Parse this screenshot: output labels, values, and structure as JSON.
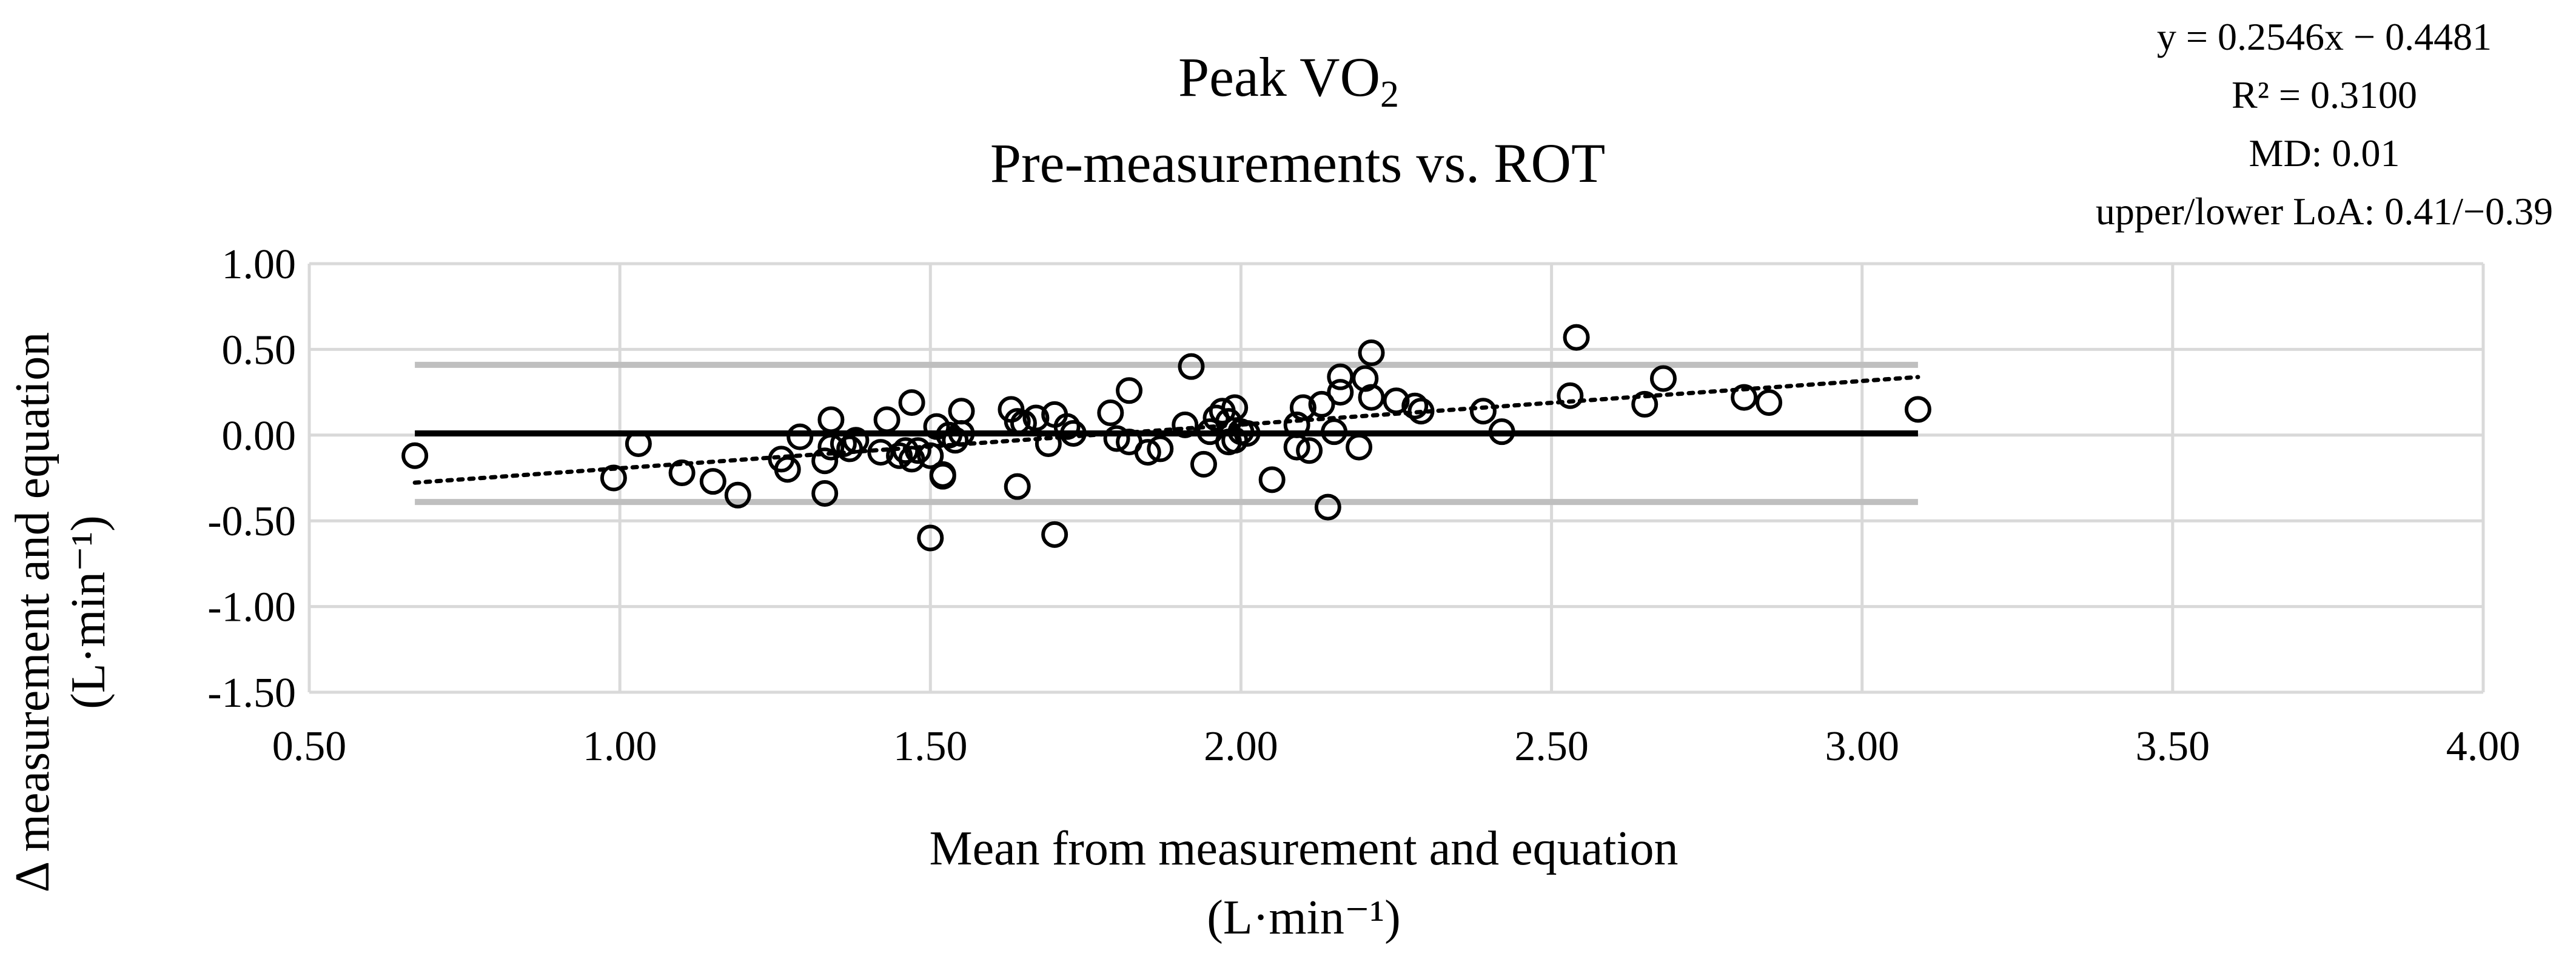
{
  "chart_data": {
    "type": "scatter",
    "title_line1": "Peak VO",
    "title_sub": "2",
    "title_line2": "Pre-measurements vs. ROT",
    "xlabel_line1": "Mean from measurement and equation",
    "xlabel_line2": "(L·min⁻¹)",
    "ylabel_line1": "Δ measurement and equation",
    "ylabel_line2": "(L·min⁻¹)",
    "xlim": [
      0.5,
      4.0
    ],
    "ylim": [
      -1.5,
      1.0
    ],
    "x_ticks": [
      0.5,
      1.0,
      1.5,
      2.0,
      2.5,
      3.0,
      3.5,
      4.0
    ],
    "x_tick_labels": [
      "0.50",
      "1.00",
      "1.50",
      "2.00",
      "2.50",
      "3.00",
      "3.50",
      "4.00"
    ],
    "y_ticks": [
      1.0,
      0.5,
      0.0,
      -0.5,
      -1.0,
      -1.5
    ],
    "y_tick_labels": [
      "1.00",
      "0.50",
      "0.00",
      "-0.50",
      "-1.00",
      "-1.50"
    ],
    "grid": true,
    "annotations": [
      "y = 0.2546x − 0.4481",
      "R² = 0.3100",
      "MD: 0.01",
      "upper/lower LoA: 0.41/−0.39"
    ],
    "mean_difference": 0.01,
    "upper_loa": 0.41,
    "lower_loa": -0.39,
    "trendline": {
      "slope": 0.2546,
      "intercept": -0.4481
    },
    "colors": {
      "points": "#000000",
      "md_line": "#000000",
      "loa_line": "#bfbfbf",
      "grid": "#d9d9d9"
    },
    "points": [
      [
        0.67,
        -0.12
      ],
      [
        0.99,
        -0.25
      ],
      [
        1.03,
        -0.05
      ],
      [
        1.1,
        -0.22
      ],
      [
        1.15,
        -0.27
      ],
      [
        1.19,
        -0.35
      ],
      [
        1.26,
        -0.14
      ],
      [
        1.27,
        -0.2
      ],
      [
        1.29,
        -0.01
      ],
      [
        1.33,
        -0.34
      ],
      [
        1.33,
        -0.15
      ],
      [
        1.34,
        0.09
      ],
      [
        1.34,
        -0.07
      ],
      [
        1.36,
        -0.05
      ],
      [
        1.37,
        -0.08
      ],
      [
        1.38,
        -0.03
      ],
      [
        1.42,
        -0.1
      ],
      [
        1.43,
        0.09
      ],
      [
        1.45,
        -0.12
      ],
      [
        1.46,
        -0.09
      ],
      [
        1.47,
        -0.14
      ],
      [
        1.47,
        0.19
      ],
      [
        1.48,
        -0.09
      ],
      [
        1.5,
        -0.12
      ],
      [
        1.5,
        -0.6
      ],
      [
        1.51,
        0.05
      ],
      [
        1.52,
        -0.23
      ],
      [
        1.52,
        -0.24
      ],
      [
        1.53,
        0.0
      ],
      [
        1.54,
        -0.03
      ],
      [
        1.55,
        0.14
      ],
      [
        1.55,
        0.01
      ],
      [
        1.63,
        0.15
      ],
      [
        1.64,
        0.08
      ],
      [
        1.64,
        -0.3
      ],
      [
        1.65,
        0.07
      ],
      [
        1.67,
        0.1
      ],
      [
        1.69,
        -0.05
      ],
      [
        1.7,
        0.12
      ],
      [
        1.7,
        -0.58
      ],
      [
        1.72,
        0.05
      ],
      [
        1.73,
        0.01
      ],
      [
        1.79,
        0.13
      ],
      [
        1.8,
        -0.02
      ],
      [
        1.82,
        -0.04
      ],
      [
        1.82,
        0.26
      ],
      [
        1.85,
        -0.1
      ],
      [
        1.87,
        -0.08
      ],
      [
        1.91,
        0.06
      ],
      [
        1.92,
        0.4
      ],
      [
        1.94,
        -0.17
      ],
      [
        1.95,
        0.02
      ],
      [
        1.96,
        0.1
      ],
      [
        1.97,
        0.14
      ],
      [
        1.98,
        -0.04
      ],
      [
        1.98,
        0.08
      ],
      [
        1.99,
        0.16
      ],
      [
        1.99,
        -0.03
      ],
      [
        2.0,
        0.02
      ],
      [
        2.01,
        0.01
      ],
      [
        2.05,
        -0.26
      ],
      [
        2.09,
        -0.07
      ],
      [
        2.09,
        0.06
      ],
      [
        2.1,
        0.16
      ],
      [
        2.11,
        -0.09
      ],
      [
        2.13,
        0.18
      ],
      [
        2.14,
        -0.42
      ],
      [
        2.15,
        0.02
      ],
      [
        2.16,
        0.25
      ],
      [
        2.16,
        0.34
      ],
      [
        2.19,
        -0.07
      ],
      [
        2.2,
        0.33
      ],
      [
        2.21,
        0.22
      ],
      [
        2.21,
        0.48
      ],
      [
        2.25,
        0.2
      ],
      [
        2.28,
        0.17
      ],
      [
        2.29,
        0.14
      ],
      [
        2.39,
        0.14
      ],
      [
        2.42,
        0.02
      ],
      [
        2.53,
        0.23
      ],
      [
        2.54,
        0.57
      ],
      [
        2.65,
        0.18
      ],
      [
        2.68,
        0.33
      ],
      [
        2.81,
        0.22
      ],
      [
        2.85,
        0.19
      ],
      [
        3.09,
        0.15
      ]
    ]
  }
}
